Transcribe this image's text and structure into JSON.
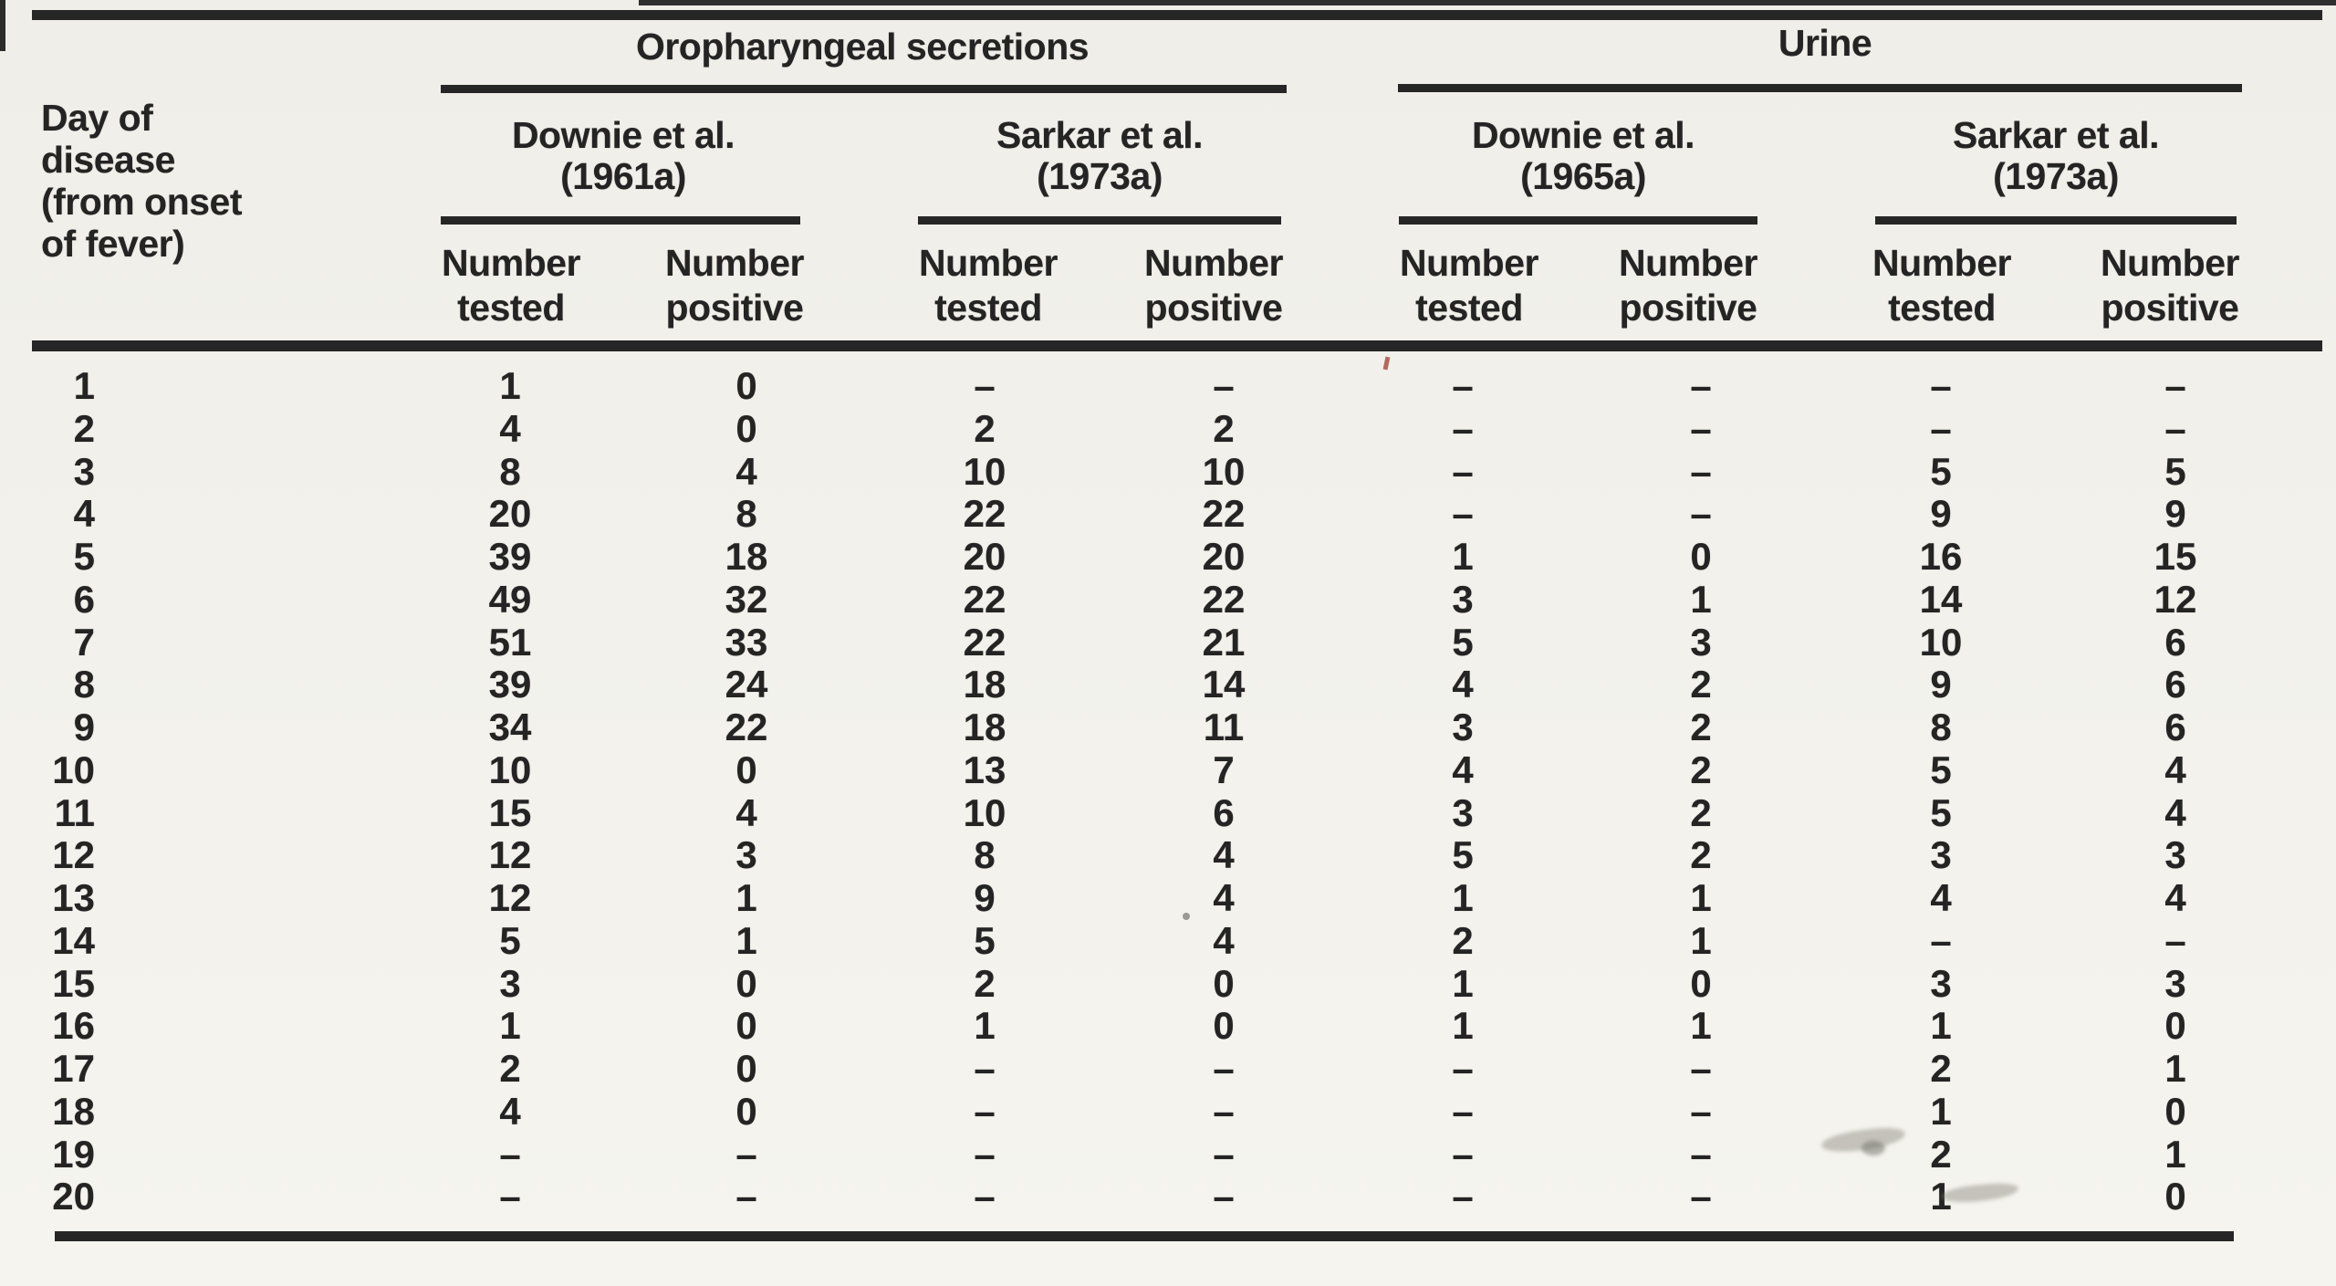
{
  "chart_data": {
    "type": "table",
    "description_visible_text_only": true,
    "day_column_header_lines": [
      "Day of",
      "disease",
      "(from onset",
      "of fever)"
    ],
    "groups": [
      {
        "label": "Oropharyngeal secretions",
        "studies": [
          {
            "name": "Downie et al.",
            "year": "(1961a)"
          },
          {
            "name": "Sarkar et al.",
            "year": "(1973a)"
          }
        ]
      },
      {
        "label": "Urine",
        "studies": [
          {
            "name": "Downie et al.",
            "year": "(1965a)"
          },
          {
            "name": "Sarkar et al.",
            "year": "(1973a)"
          }
        ]
      }
    ],
    "measure_header": {
      "word": "Number",
      "tested": "tested",
      "positive": "positive"
    },
    "missing_marker": "–",
    "columns": [
      "Day of disease (from onset of fever)",
      "Oropharyngeal secretions / Downie et al. (1961a) / Number tested",
      "Oropharyngeal secretions / Downie et al. (1961a) / Number positive",
      "Oropharyngeal secretions / Sarkar et al. (1973a) / Number tested",
      "Oropharyngeal secretions / Sarkar et al. (1973a) / Number positive",
      "Urine / Downie et al. (1965a) / Number tested",
      "Urine / Downie et al. (1965a) / Number positive",
      "Urine / Sarkar et al. (1973a) / Number tested",
      "Urine / Sarkar et al. (1973a) / Number positive"
    ],
    "rows": [
      {
        "day": "1",
        "values": [
          "1",
          "0",
          "–",
          "–",
          "–",
          "–",
          "–",
          "–"
        ]
      },
      {
        "day": "2",
        "values": [
          "4",
          "0",
          "2",
          "2",
          "–",
          "–",
          "–",
          "–"
        ]
      },
      {
        "day": "3",
        "values": [
          "8",
          "4",
          "10",
          "10",
          "–",
          "–",
          "5",
          "5"
        ]
      },
      {
        "day": "4",
        "values": [
          "20",
          "8",
          "22",
          "22",
          "–",
          "–",
          "9",
          "9"
        ]
      },
      {
        "day": "5",
        "values": [
          "39",
          "18",
          "20",
          "20",
          "1",
          "0",
          "16",
          "15"
        ]
      },
      {
        "day": "6",
        "values": [
          "49",
          "32",
          "22",
          "22",
          "3",
          "1",
          "14",
          "12"
        ]
      },
      {
        "day": "7",
        "values": [
          "51",
          "33",
          "22",
          "21",
          "5",
          "3",
          "10",
          "6"
        ]
      },
      {
        "day": "8",
        "values": [
          "39",
          "24",
          "18",
          "14",
          "4",
          "2",
          "9",
          "6"
        ]
      },
      {
        "day": "9",
        "values": [
          "34",
          "22",
          "18",
          "11",
          "3",
          "2",
          "8",
          "6"
        ]
      },
      {
        "day": "10",
        "values": [
          "10",
          "0",
          "13",
          "7",
          "4",
          "2",
          "5",
          "4"
        ]
      },
      {
        "day": "11",
        "values": [
          "15",
          "4",
          "10",
          "6",
          "3",
          "2",
          "5",
          "4"
        ]
      },
      {
        "day": "12",
        "values": [
          "12",
          "3",
          "8",
          "4",
          "5",
          "2",
          "3",
          "3"
        ]
      },
      {
        "day": "13",
        "values": [
          "12",
          "1",
          "9",
          "4",
          "1",
          "1",
          "4",
          "4"
        ]
      },
      {
        "day": "14",
        "values": [
          "5",
          "1",
          "5",
          "4",
          "2",
          "1",
          "–",
          "–"
        ]
      },
      {
        "day": "15",
        "values": [
          "3",
          "0",
          "2",
          "0",
          "1",
          "0",
          "3",
          "3"
        ]
      },
      {
        "day": "16",
        "values": [
          "1",
          "0",
          "1",
          "0",
          "1",
          "1",
          "1",
          "0"
        ]
      },
      {
        "day": "17",
        "values": [
          "2",
          "0",
          "–",
          "–",
          "–",
          "–",
          "2",
          "1"
        ]
      },
      {
        "day": "18",
        "values": [
          "4",
          "0",
          "–",
          "–",
          "–",
          "–",
          "1",
          "0"
        ]
      },
      {
        "day": "19",
        "values": [
          "–",
          "–",
          "–",
          "–",
          "–",
          "–",
          "2",
          "1"
        ]
      },
      {
        "day": "20",
        "values": [
          "–",
          "–",
          "–",
          "–",
          "–",
          "–",
          "1",
          "0"
        ]
      }
    ]
  }
}
